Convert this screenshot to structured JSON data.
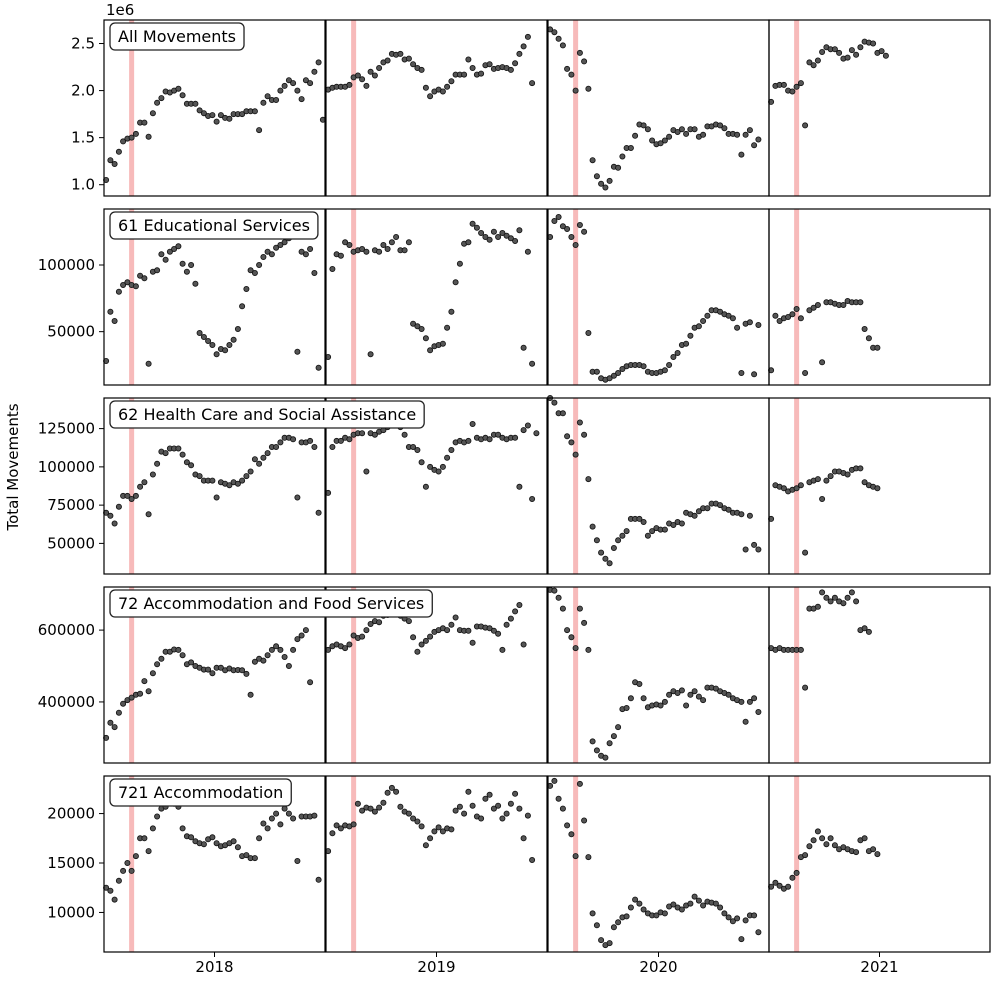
{
  "chart_data": {
    "type": "scatter",
    "ylabel": "Total Movements",
    "x_tick_labels": [
      "2018",
      "2019",
      "2020",
      "2021"
    ],
    "year_columns": [
      "2018",
      "2019",
      "2020",
      "2021"
    ],
    "marker_lines_week": [
      6,
      6,
      6,
      6
    ],
    "marker_line_color": "#f4a3a3",
    "point_color": "#555555",
    "grid": false,
    "panels": [
      {
        "name": "All Movements",
        "ylim": [
          880000,
          2750000
        ],
        "offset_text": "1e6",
        "yticks": [
          1000000,
          1500000,
          2000000,
          2500000
        ],
        "ytick_labels": [
          "1.0",
          "1.5",
          "2.0",
          "2.5"
        ],
        "years": [
          [
            1050000,
            1260000,
            1220000,
            1350000,
            1460000,
            1490000,
            1500000,
            1540000,
            1660000,
            1660000,
            1510000,
            1760000,
            1870000,
            1920000,
            1990000,
            1980000,
            2000000,
            2020000,
            1950000,
            1860000,
            1860000,
            1860000,
            1790000,
            1760000,
            1730000,
            1740000,
            1670000,
            1740000,
            1710000,
            1700000,
            1750000,
            1750000,
            1750000,
            1780000,
            1780000,
            1780000,
            1580000,
            1870000,
            1940000,
            1900000,
            1900000,
            2000000,
            2050000,
            2110000,
            2080000,
            2000000,
            1910000,
            2110000,
            2080000,
            2200000,
            2300000,
            1690000
          ],
          [
            2010000,
            2030000,
            2040000,
            2040000,
            2040000,
            2060000,
            2140000,
            2160000,
            2120000,
            2050000,
            2200000,
            2160000,
            2240000,
            2300000,
            2320000,
            2390000,
            2380000,
            2390000,
            2330000,
            2340000,
            2280000,
            2240000,
            2220000,
            2030000,
            1940000,
            1990000,
            2010000,
            1990000,
            2040000,
            2100000,
            2170000,
            2170000,
            2170000,
            2330000,
            2240000,
            2170000,
            2180000,
            2270000,
            2280000,
            2230000,
            2240000,
            2250000,
            2240000,
            2220000,
            2290000,
            2390000,
            2470000,
            2570000,
            2080000
          ],
          [
            2650000,
            2620000,
            2550000,
            2480000,
            2230000,
            2170000,
            2000000,
            2400000,
            2310000,
            2020000,
            1260000,
            1090000,
            1010000,
            970000,
            1040000,
            1190000,
            1180000,
            1300000,
            1390000,
            1390000,
            1520000,
            1640000,
            1630000,
            1590000,
            1470000,
            1430000,
            1440000,
            1470000,
            1510000,
            1580000,
            1560000,
            1590000,
            1540000,
            1590000,
            1590000,
            1510000,
            1530000,
            1620000,
            1620000,
            1640000,
            1630000,
            1600000,
            1540000,
            1540000,
            1530000,
            1320000,
            1530000,
            1580000,
            1420000,
            1480000
          ],
          [
            1880000,
            2050000,
            2060000,
            2060000,
            2000000,
            1990000,
            2040000,
            2080000,
            1630000,
            2300000,
            2270000,
            2320000,
            2410000,
            2460000,
            2440000,
            2440000,
            2400000,
            2340000,
            2350000,
            2430000,
            2380000,
            2460000,
            2520000,
            2510000,
            2500000,
            2400000,
            2420000,
            2370000
          ]
        ]
      },
      {
        "name": "61 Educational Services",
        "ylim": [
          10000,
          142000
        ],
        "yticks": [
          50000,
          100000
        ],
        "ytick_labels": [
          "50000",
          "100000"
        ],
        "years": [
          [
            28000,
            65000,
            58000,
            80000,
            85000,
            87000,
            85000,
            84000,
            92000,
            90000,
            26000,
            95000,
            96000,
            108000,
            104000,
            110000,
            112000,
            114000,
            101000,
            95000,
            100000,
            86000,
            49000,
            46000,
            43000,
            40000,
            33000,
            37000,
            36000,
            40000,
            44000,
            52000,
            69000,
            82000,
            96000,
            94000,
            100000,
            106000,
            110000,
            108000,
            113000,
            115000,
            117000,
            120000,
            122000,
            35000,
            110000,
            108000,
            112000,
            94000,
            23000
          ],
          [
            31000,
            97000,
            108000,
            107000,
            117000,
            115000,
            110000,
            111000,
            112000,
            110000,
            33000,
            111000,
            110000,
            115000,
            112000,
            117000,
            121000,
            111000,
            111000,
            117000,
            56000,
            54000,
            52000,
            45000,
            36000,
            39000,
            40000,
            41000,
            53000,
            65000,
            87000,
            101000,
            116000,
            117000,
            131000,
            128000,
            124000,
            121000,
            119000,
            125000,
            121000,
            124000,
            122000,
            120000,
            118000,
            126000,
            38000,
            110000,
            26000
          ],
          [
            121000,
            133000,
            136000,
            129000,
            127000,
            121000,
            115000,
            130000,
            125000,
            49000,
            20000,
            20000,
            15000,
            14000,
            15000,
            17000,
            19000,
            22000,
            24000,
            25000,
            25000,
            25000,
            24000,
            20000,
            19000,
            19000,
            20000,
            21000,
            25000,
            31000,
            34000,
            40000,
            41000,
            47000,
            53000,
            54000,
            58000,
            62000,
            66000,
            66000,
            65000,
            63000,
            62000,
            60000,
            53000,
            19000,
            56000,
            57000,
            18000,
            55000
          ],
          [
            21000,
            62000,
            58000,
            60000,
            61000,
            63000,
            67000,
            60000,
            19000,
            66000,
            68000,
            70000,
            27000,
            72000,
            72000,
            71000,
            70000,
            70000,
            73000,
            72000,
            72000,
            72000,
            52000,
            45000,
            38000,
            38000
          ]
        ]
      },
      {
        "name": "62 Health Care and Social Assistance",
        "ylim": [
          30000,
          145000
        ],
        "yticks": [
          50000,
          75000,
          100000,
          125000
        ],
        "ytick_labels": [
          "50000",
          "75000",
          "100000",
          "125000"
        ],
        "years": [
          [
            70000,
            68000,
            63000,
            74000,
            81000,
            81000,
            79000,
            81000,
            87000,
            90000,
            69000,
            95000,
            102000,
            110000,
            109000,
            112000,
            112000,
            112000,
            108000,
            103000,
            101000,
            95000,
            94000,
            91000,
            91000,
            91000,
            80000,
            90000,
            89000,
            88000,
            90000,
            89000,
            91000,
            94000,
            97000,
            105000,
            102000,
            106000,
            109000,
            113000,
            113000,
            116000,
            119000,
            119000,
            118000,
            80000,
            116000,
            116000,
            117000,
            113000,
            70000
          ],
          [
            83000,
            113000,
            117000,
            117000,
            119000,
            118000,
            121000,
            122000,
            122000,
            97000,
            122000,
            121000,
            123000,
            124000,
            126000,
            129000,
            131000,
            126000,
            121000,
            113000,
            113000,
            111000,
            103000,
            87000,
            100000,
            98000,
            97000,
            100000,
            106000,
            111000,
            116000,
            117000,
            116000,
            117000,
            128000,
            119000,
            118000,
            119000,
            118000,
            121000,
            121000,
            119000,
            118000,
            119000,
            119000,
            87000,
            124000,
            127000,
            79000,
            122000
          ],
          [
            145000,
            142000,
            135000,
            135000,
            120000,
            116000,
            108000,
            129000,
            121000,
            92000,
            61000,
            52000,
            44000,
            40000,
            37000,
            47000,
            52000,
            55000,
            58000,
            66000,
            66000,
            66000,
            64000,
            55000,
            58000,
            60000,
            59000,
            59000,
            63000,
            62000,
            64000,
            63000,
            70000,
            69000,
            68000,
            71000,
            73000,
            73000,
            76000,
            76000,
            75000,
            73000,
            72000,
            70000,
            70000,
            69000,
            46000,
            68000,
            49000,
            46000
          ],
          [
            66000,
            88000,
            87000,
            86000,
            84000,
            85000,
            86000,
            88000,
            44000,
            90000,
            91000,
            92000,
            79000,
            91000,
            94000,
            97000,
            97000,
            96000,
            95000,
            98000,
            99000,
            99000,
            90000,
            88000,
            87000,
            86000
          ]
        ]
      },
      {
        "name": "72 Accommodation and Food Services",
        "ylim": [
          230000,
          720000
        ],
        "yticks": [
          400000,
          600000
        ],
        "ytick_labels": [
          "400000",
          "600000"
        ],
        "years": [
          [
            300000,
            342000,
            330000,
            370000,
            395000,
            405000,
            412000,
            420000,
            423000,
            458000,
            430000,
            480000,
            505000,
            520000,
            540000,
            540000,
            546000,
            545000,
            530000,
            505000,
            510000,
            500000,
            495000,
            490000,
            490000,
            480000,
            495000,
            495000,
            488000,
            493000,
            488000,
            489000,
            488000,
            478000,
            420000,
            512000,
            520000,
            515000,
            530000,
            545000,
            555000,
            545000,
            525000,
            500000,
            545000,
            575000,
            585000,
            600000,
            455000
          ],
          [
            545000,
            555000,
            560000,
            555000,
            550000,
            560000,
            585000,
            578000,
            582000,
            600000,
            617000,
            625000,
            622000,
            640000,
            642000,
            648000,
            655000,
            640000,
            632000,
            625000,
            580000,
            540000,
            560000,
            570000,
            582000,
            595000,
            600000,
            605000,
            600000,
            615000,
            635000,
            600000,
            598000,
            598000,
            565000,
            610000,
            610000,
            607000,
            605000,
            598000,
            590000,
            545000,
            615000,
            632000,
            652000,
            670000,
            560000
          ],
          [
            712000,
            710000,
            690000,
            660000,
            600000,
            580000,
            550000,
            660000,
            620000,
            545000,
            290000,
            265000,
            250000,
            245000,
            285000,
            305000,
            330000,
            380000,
            383000,
            410000,
            455000,
            450000,
            410000,
            385000,
            390000,
            393000,
            390000,
            400000,
            420000,
            430000,
            425000,
            432000,
            390000,
            420000,
            430000,
            415000,
            405000,
            440000,
            440000,
            437000,
            430000,
            425000,
            420000,
            410000,
            405000,
            400000,
            345000,
            400000,
            410000,
            372000
          ],
          [
            550000,
            545000,
            550000,
            545000,
            545000,
            545000,
            545000,
            545000,
            440000,
            660000,
            660000,
            665000,
            705000,
            690000,
            680000,
            690000,
            680000,
            675000,
            690000,
            705000,
            680000,
            600000,
            605000,
            595000
          ]
        ]
      },
      {
        "name": "721 Accommodation",
        "ylim": [
          6000,
          23800
        ],
        "yticks": [
          10000,
          15000,
          20000
        ],
        "ytick_labels": [
          "10000",
          "15000",
          "20000"
        ],
        "years": [
          [
            12500,
            12200,
            11300,
            13200,
            14200,
            15000,
            14200,
            15700,
            17500,
            17500,
            16200,
            18500,
            19700,
            20500,
            20700,
            21100,
            21000,
            20700,
            18500,
            17700,
            17600,
            17200,
            17000,
            16900,
            17400,
            17600,
            17000,
            16700,
            16800,
            17000,
            17200,
            16600,
            15700,
            15800,
            15500,
            15500,
            17500,
            19000,
            18500,
            19500,
            20000,
            18900,
            20500,
            20000,
            19500,
            15200,
            19700,
            19700,
            19700,
            19800,
            13300
          ],
          [
            16200,
            18000,
            18800,
            18500,
            18800,
            18700,
            18900,
            21000,
            20300,
            20600,
            20500,
            20200,
            20600,
            21100,
            22100,
            22600,
            22200,
            20700,
            20200,
            20000,
            19500,
            19200,
            18700,
            16800,
            17500,
            18200,
            18600,
            18200,
            18500,
            18400,
            20300,
            20700,
            20000,
            22200,
            20800,
            19700,
            19500,
            21500,
            21900,
            20500,
            20800,
            19500,
            20000,
            21000,
            22000,
            20500,
            17500,
            19800,
            15300
          ],
          [
            22800,
            23300,
            21500,
            20500,
            18800,
            17900,
            15700,
            23000,
            19300,
            15600,
            9900,
            8700,
            7200,
            6700,
            6900,
            8500,
            9000,
            9500,
            9600,
            10500,
            11300,
            10900,
            10300,
            9900,
            9700,
            9700,
            10000,
            9900,
            10600,
            10800,
            10500,
            10300,
            10700,
            10900,
            11600,
            11200,
            10700,
            11100,
            11000,
            10900,
            10500,
            9900,
            9500,
            9100,
            9400,
            7300,
            9200,
            9700,
            9700,
            8000
          ],
          [
            12600,
            13000,
            12700,
            12400,
            12600,
            13500,
            14000,
            15600,
            15800,
            16700,
            17300,
            18200,
            17500,
            16900,
            17500,
            16800,
            16400,
            16600,
            16400,
            16200,
            16100,
            17300,
            17500,
            16200,
            16400,
            15900
          ]
        ]
      }
    ]
  }
}
